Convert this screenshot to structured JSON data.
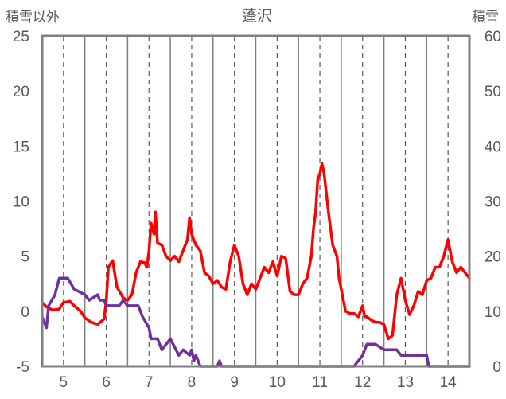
{
  "chart_data": {
    "type": "line",
    "title": "蓬沢",
    "y_left_label": "積雪以外",
    "y_right_label": "積雪",
    "x_ticks": [
      "5",
      "6",
      "7",
      "8",
      "9",
      "10",
      "11",
      "12",
      "13",
      "14"
    ],
    "x_range": [
      4.5,
      14.5
    ],
    "y_left_range": [
      -5,
      25
    ],
    "y_left_ticks": [
      25,
      20,
      15,
      10,
      5,
      0,
      -5
    ],
    "y_right_range": [
      0,
      60
    ],
    "y_right_ticks": [
      60,
      50,
      40,
      30,
      20,
      10,
      0
    ],
    "grid": true,
    "series": [
      {
        "axis": "left",
        "color": "#ff0000",
        "points": [
          [
            4.5,
            0.8
          ],
          [
            4.6,
            0.4
          ],
          [
            4.75,
            0.1
          ],
          [
            4.9,
            0.2
          ],
          [
            5.0,
            0.8
          ],
          [
            5.15,
            0.9
          ],
          [
            5.25,
            0.5
          ],
          [
            5.4,
            0.0
          ],
          [
            5.5,
            -0.6
          ],
          [
            5.65,
            -1.0
          ],
          [
            5.8,
            -1.2
          ],
          [
            5.95,
            -0.7
          ],
          [
            6.0,
            1.0
          ],
          [
            6.05,
            4.0
          ],
          [
            6.15,
            4.6
          ],
          [
            6.25,
            2.2
          ],
          [
            6.4,
            1.2
          ],
          [
            6.5,
            1.0
          ],
          [
            6.6,
            1.5
          ],
          [
            6.7,
            3.5
          ],
          [
            6.8,
            4.5
          ],
          [
            6.9,
            4.4
          ],
          [
            6.95,
            4.0
          ],
          [
            7.0,
            5.5
          ],
          [
            7.05,
            8.0
          ],
          [
            7.12,
            7.0
          ],
          [
            7.15,
            9.0
          ],
          [
            7.2,
            6.2
          ],
          [
            7.3,
            6.0
          ],
          [
            7.4,
            5.0
          ],
          [
            7.5,
            4.6
          ],
          [
            7.6,
            5.0
          ],
          [
            7.7,
            4.5
          ],
          [
            7.8,
            5.5
          ],
          [
            7.9,
            6.5
          ],
          [
            7.95,
            8.5
          ],
          [
            8.0,
            7.0
          ],
          [
            8.1,
            6.0
          ],
          [
            8.2,
            5.5
          ],
          [
            8.3,
            3.5
          ],
          [
            8.4,
            3.2
          ],
          [
            8.5,
            2.5
          ],
          [
            8.6,
            2.8
          ],
          [
            8.7,
            2.2
          ],
          [
            8.8,
            2.0
          ],
          [
            8.9,
            4.5
          ],
          [
            9.0,
            6.0
          ],
          [
            9.1,
            5.0
          ],
          [
            9.2,
            2.5
          ],
          [
            9.3,
            1.5
          ],
          [
            9.4,
            2.5
          ],
          [
            9.5,
            2.0
          ],
          [
            9.6,
            3.0
          ],
          [
            9.7,
            4.0
          ],
          [
            9.8,
            3.5
          ],
          [
            9.9,
            4.5
          ],
          [
            10.0,
            3.2
          ],
          [
            10.1,
            5.0
          ],
          [
            10.2,
            4.8
          ],
          [
            10.3,
            1.8
          ],
          [
            10.4,
            1.5
          ],
          [
            10.5,
            1.5
          ],
          [
            10.6,
            2.5
          ],
          [
            10.7,
            3.0
          ],
          [
            10.8,
            5.0
          ],
          [
            10.85,
            7.5
          ],
          [
            10.9,
            9.0
          ],
          [
            10.95,
            12.0
          ],
          [
            11.0,
            12.5
          ],
          [
            11.05,
            13.4
          ],
          [
            11.1,
            12.5
          ],
          [
            11.2,
            9.0
          ],
          [
            11.3,
            6.0
          ],
          [
            11.4,
            5.0
          ],
          [
            11.45,
            3.0
          ],
          [
            11.5,
            2.0
          ],
          [
            11.6,
            0.0
          ],
          [
            11.7,
            -0.2
          ],
          [
            11.8,
            -0.2
          ],
          [
            11.9,
            -0.5
          ],
          [
            12.0,
            0.5
          ],
          [
            12.05,
            -0.5
          ],
          [
            12.1,
            -0.5
          ],
          [
            12.2,
            -0.8
          ],
          [
            12.3,
            -1.0
          ],
          [
            12.4,
            -1.0
          ],
          [
            12.5,
            -1.2
          ],
          [
            12.6,
            -2.5
          ],
          [
            12.7,
            -2.2
          ],
          [
            12.8,
            1.5
          ],
          [
            12.9,
            3.0
          ],
          [
            13.0,
            1.0
          ],
          [
            13.1,
            -0.3
          ],
          [
            13.2,
            0.5
          ],
          [
            13.3,
            1.8
          ],
          [
            13.4,
            1.5
          ],
          [
            13.5,
            2.8
          ],
          [
            13.6,
            3.0
          ],
          [
            13.7,
            4.0
          ],
          [
            13.8,
            4.0
          ],
          [
            13.9,
            5.0
          ],
          [
            14.0,
            6.5
          ],
          [
            14.1,
            4.5
          ],
          [
            14.2,
            3.5
          ],
          [
            14.3,
            4.0
          ],
          [
            14.4,
            3.5
          ],
          [
            14.5,
            3.0
          ]
        ]
      },
      {
        "axis": "right",
        "color": "#7030a0",
        "points": [
          [
            4.5,
            9
          ],
          [
            4.6,
            7
          ],
          [
            4.65,
            11
          ],
          [
            4.8,
            13
          ],
          [
            4.9,
            16
          ],
          [
            5.1,
            16
          ],
          [
            5.25,
            14
          ],
          [
            5.5,
            13
          ],
          [
            5.6,
            12
          ],
          [
            5.8,
            13
          ],
          [
            5.85,
            12
          ],
          [
            5.95,
            12
          ],
          [
            6.0,
            11
          ],
          [
            6.1,
            11
          ],
          [
            6.2,
            11
          ],
          [
            6.3,
            11
          ],
          [
            6.4,
            12
          ],
          [
            6.5,
            11
          ],
          [
            6.75,
            11
          ],
          [
            6.85,
            9
          ],
          [
            7.0,
            7
          ],
          [
            7.05,
            5
          ],
          [
            7.2,
            5
          ],
          [
            7.3,
            3
          ],
          [
            7.5,
            5
          ],
          [
            7.7,
            2
          ],
          [
            7.8,
            3
          ],
          [
            7.95,
            2
          ],
          [
            8.0,
            3
          ],
          [
            8.05,
            1
          ],
          [
            8.1,
            2
          ],
          [
            8.2,
            0
          ],
          [
            8.3,
            0
          ],
          [
            8.5,
            0
          ],
          [
            8.6,
            0
          ],
          [
            8.65,
            1
          ],
          [
            8.7,
            0
          ],
          [
            9.0,
            0
          ],
          [
            10.0,
            0
          ],
          [
            11.0,
            0
          ],
          [
            11.8,
            0
          ],
          [
            11.9,
            1
          ],
          [
            12.0,
            2
          ],
          [
            12.1,
            4
          ],
          [
            12.3,
            4
          ],
          [
            12.5,
            3
          ],
          [
            12.6,
            3
          ],
          [
            12.8,
            3
          ],
          [
            12.9,
            2
          ],
          [
            13.2,
            2
          ],
          [
            13.5,
            2
          ],
          [
            13.55,
            0
          ],
          [
            14.0,
            0
          ],
          [
            14.5,
            0
          ]
        ]
      }
    ]
  }
}
